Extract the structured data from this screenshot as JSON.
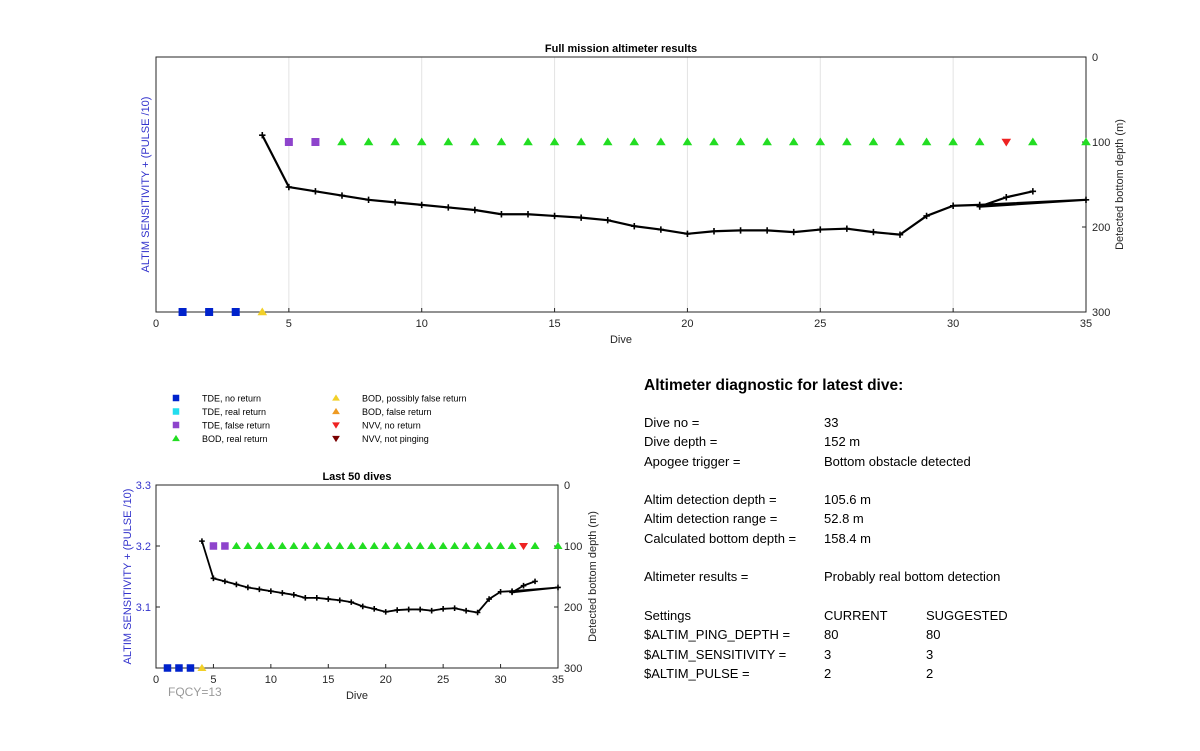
{
  "figure": {
    "footer_text": "FQCY=13",
    "ylabel_color": "#3333cc",
    "footer_color": "#999999"
  },
  "chart_data": [
    {
      "type": "scatter",
      "title": "Full mission altimeter results",
      "xlabel": "Dive",
      "ylabel_left": "ALTIM SENSITIVITY + (PULSE /10)",
      "ylabel_right": "Detected bottom depth (m)",
      "xlim": [
        0,
        35
      ],
      "xticks": [
        0,
        5,
        10,
        15,
        20,
        25,
        30,
        35
      ],
      "ylim_right": [
        0,
        300
      ],
      "yticks_right": [
        0,
        100,
        200,
        300
      ],
      "right_axis_reversed": true,
      "grid": "vertical",
      "markers": [
        {
          "x": 1,
          "y": 300,
          "category": "TDE, no return"
        },
        {
          "x": 2,
          "y": 300,
          "category": "TDE, no return"
        },
        {
          "x": 3,
          "y": 300,
          "category": "TDE, no return"
        },
        {
          "x": 4,
          "y": 300,
          "category": "BOD, possibly false return"
        },
        {
          "x": 5,
          "y": 100,
          "category": "TDE, false return"
        },
        {
          "x": 6,
          "y": 100,
          "category": "TDE, false return"
        },
        {
          "x": 7,
          "y": 100,
          "category": "BOD, real return"
        },
        {
          "x": 8,
          "y": 100,
          "category": "BOD, real return"
        },
        {
          "x": 9,
          "y": 100,
          "category": "BOD, real return"
        },
        {
          "x": 10,
          "y": 100,
          "category": "BOD, real return"
        },
        {
          "x": 11,
          "y": 100,
          "category": "BOD, real return"
        },
        {
          "x": 12,
          "y": 100,
          "category": "BOD, real return"
        },
        {
          "x": 13,
          "y": 100,
          "category": "BOD, real return"
        },
        {
          "x": 14,
          "y": 100,
          "category": "BOD, real return"
        },
        {
          "x": 15,
          "y": 100,
          "category": "BOD, real return"
        },
        {
          "x": 16,
          "y": 100,
          "category": "BOD, real return"
        },
        {
          "x": 17,
          "y": 100,
          "category": "BOD, real return"
        },
        {
          "x": 18,
          "y": 100,
          "category": "BOD, real return"
        },
        {
          "x": 19,
          "y": 100,
          "category": "BOD, real return"
        },
        {
          "x": 20,
          "y": 100,
          "category": "BOD, real return"
        },
        {
          "x": 21,
          "y": 100,
          "category": "BOD, real return"
        },
        {
          "x": 22,
          "y": 100,
          "category": "BOD, real return"
        },
        {
          "x": 23,
          "y": 100,
          "category": "BOD, real return"
        },
        {
          "x": 24,
          "y": 100,
          "category": "BOD, real return"
        },
        {
          "x": 25,
          "y": 100,
          "category": "BOD, real return"
        },
        {
          "x": 26,
          "y": 100,
          "category": "BOD, real return"
        },
        {
          "x": 27,
          "y": 100,
          "category": "BOD, real return"
        },
        {
          "x": 28,
          "y": 100,
          "category": "BOD, real return"
        },
        {
          "x": 29,
          "y": 100,
          "category": "BOD, real return"
        },
        {
          "x": 30,
          "y": 100,
          "category": "BOD, real return"
        },
        {
          "x": 31,
          "y": 100,
          "category": "BOD, real return"
        },
        {
          "x": 32,
          "y": 100,
          "category": "NVV, no return"
        },
        {
          "x": 33,
          "y": 100,
          "category": "BOD, real return"
        },
        {
          "x": 35,
          "y": 100,
          "category": "BOD, real return"
        }
      ],
      "bottom_depth": [
        [
          4,
          92
        ],
        [
          5,
          153
        ],
        [
          6,
          158
        ],
        [
          7,
          163
        ],
        [
          8,
          168
        ],
        [
          9,
          171
        ],
        [
          10,
          174
        ],
        [
          11,
          177
        ],
        [
          12,
          180
        ],
        [
          13,
          185
        ],
        [
          14,
          185
        ],
        [
          15,
          187
        ],
        [
          16,
          189
        ],
        [
          17,
          192
        ],
        [
          18,
          199
        ],
        [
          19,
          203
        ],
        [
          20,
          208
        ],
        [
          21,
          205
        ],
        [
          22,
          204
        ],
        [
          23,
          204
        ],
        [
          24,
          206
        ],
        [
          25,
          203
        ],
        [
          26,
          202
        ],
        [
          27,
          206
        ],
        [
          28,
          209
        ],
        [
          29,
          187
        ],
        [
          30,
          175
        ],
        [
          31,
          174
        ],
        [
          35,
          168
        ],
        [
          31,
          176
        ],
        [
          32,
          165
        ],
        [
          33,
          158
        ]
      ]
    },
    {
      "type": "scatter",
      "title": "Last 50 dives",
      "xlabel": "Dive",
      "ylabel_left": "ALTIM SENSITIVITY + (PULSE /10)",
      "ylabel_right": "Detected bottom depth (m)",
      "xlim": [
        0,
        35
      ],
      "xticks": [
        0,
        5,
        10,
        15,
        20,
        25,
        30,
        35
      ],
      "ylim_left": [
        3,
        3.3
      ],
      "yticks_left": [
        "3.1",
        "3.2",
        "3.3"
      ],
      "ylim_right": [
        0,
        300
      ],
      "yticks_right": [
        0,
        100,
        200,
        300
      ],
      "right_axis_reversed": true,
      "grid": "off"
    }
  ],
  "legend": {
    "items": [
      {
        "label": "TDE, no return",
        "marker": "square",
        "color": "#0022cc"
      },
      {
        "label": "TDE, real return",
        "marker": "square",
        "color": "#22ddee"
      },
      {
        "label": "TDE, false return",
        "marker": "square",
        "color": "#8e44cc"
      },
      {
        "label": "BOD, real return",
        "marker": "triangle-up",
        "color": "#22dd22"
      },
      {
        "label": "BOD, possibly false return",
        "marker": "triangle-up",
        "color": "#f2d028"
      },
      {
        "label": "BOD, false return",
        "marker": "triangle-up",
        "color": "#ee9a22"
      },
      {
        "label": "NVV, no return",
        "marker": "triangle-down",
        "color": "#ee2222"
      },
      {
        "label": "NVV, not pinging",
        "marker": "triangle-down",
        "color": "#7a0000"
      }
    ]
  },
  "diagnostic": {
    "title": "Altimeter diagnostic for latest dive:",
    "dive_no_label": "Dive no =",
    "dive_no_value": "33",
    "dive_depth_label": "Dive depth =",
    "dive_depth_value": "152 m",
    "apogee_label": "Apogee trigger =",
    "apogee_value": "Bottom obstacle detected",
    "det_depth_label": "Altim detection depth =",
    "det_depth_value": "105.6 m",
    "det_range_label": "Altim detection range =",
    "det_range_value": "52.8 m",
    "calc_depth_label": "Calculated bottom depth =",
    "calc_depth_value": "158.4 m",
    "results_label": "Altimeter results =",
    "results_value": "Probably real bottom detection",
    "settings_label": "Settings",
    "current_label": "CURRENT",
    "suggested_label": "SUGGESTED",
    "ping_label": "$ALTIM_PING_DEPTH =",
    "ping_current": "80",
    "ping_suggested": "80",
    "sens_label": "$ALTIM_SENSITIVITY =",
    "sens_current": "3",
    "sens_suggested": "3",
    "pulse_label": "$ALTIM_PULSE =",
    "pulse_current": "2",
    "pulse_suggested": "2"
  }
}
